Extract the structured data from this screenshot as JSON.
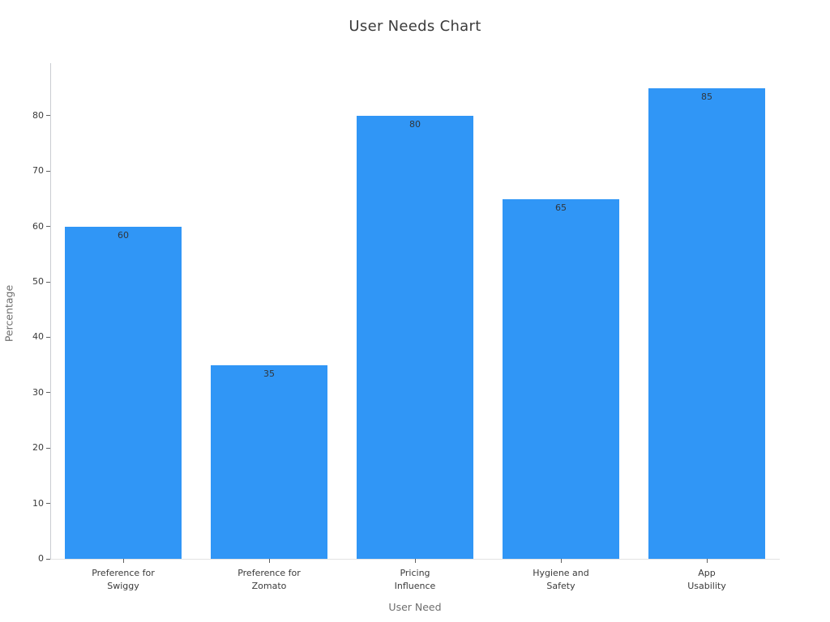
{
  "chart_data": {
    "type": "bar",
    "title": "User Needs Chart",
    "xlabel": "User Need",
    "ylabel": "Percentage",
    "categories": [
      [
        "Preference for",
        "Swiggy"
      ],
      [
        "Preference for",
        "Zomato"
      ],
      [
        "Pricing",
        "Influence"
      ],
      [
        "Hygiene and",
        "Safety"
      ],
      [
        "App",
        "Usability"
      ]
    ],
    "values": [
      60,
      35,
      80,
      65,
      85
    ],
    "yticks": [
      0,
      10,
      20,
      30,
      40,
      50,
      60,
      70,
      80
    ],
    "ylim": [
      0,
      89.5
    ],
    "bar_color": "#3096f6",
    "value_label_color": "#31363c",
    "grid": false,
    "legend_position": "none"
  }
}
